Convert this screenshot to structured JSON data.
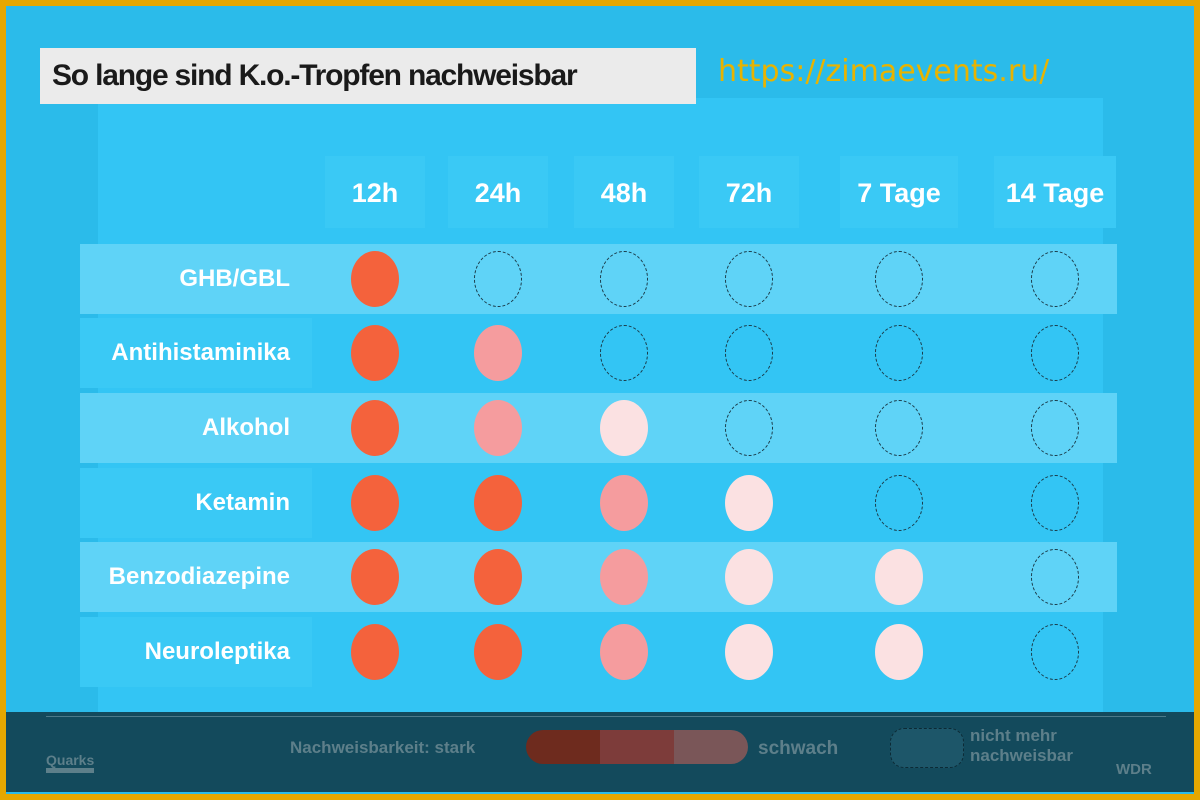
{
  "chart_data": {
    "type": "table",
    "title": "So lange sind K.o.-Tropfen nachweisbar",
    "columns": [
      "12h",
      "24h",
      "48h",
      "72h",
      "7 Tage",
      "14 Tage"
    ],
    "rows": [
      {
        "label": "GHB/GBL",
        "levels": [
          3,
          0,
          0,
          0,
          0,
          0
        ]
      },
      {
        "label": "Antihistaminika",
        "levels": [
          3,
          2,
          0,
          0,
          0,
          0
        ]
      },
      {
        "label": "Alkohol",
        "levels": [
          3,
          2,
          1,
          0,
          0,
          0
        ]
      },
      {
        "label": "Ketamin",
        "levels": [
          3,
          3,
          2,
          1,
          0,
          0
        ]
      },
      {
        "label": "Benzodiazepine",
        "levels": [
          3,
          3,
          2,
          1,
          1,
          0
        ]
      },
      {
        "label": "Neuroleptika",
        "levels": [
          3,
          3,
          2,
          1,
          1,
          0
        ]
      }
    ],
    "level_colors": {
      "3": "#f4623c",
      "2": "#f59c9e",
      "1": "#fbe1e2",
      "0": "dashed-outline"
    },
    "legend": {
      "label": "Nachweisbarkeit: stark",
      "weak": "schwach",
      "none": "nicht mehr nachweisbar"
    }
  },
  "branding": {
    "left": "Quarks",
    "right": "WDR"
  },
  "watermark": "https://zimaevents.ru/"
}
